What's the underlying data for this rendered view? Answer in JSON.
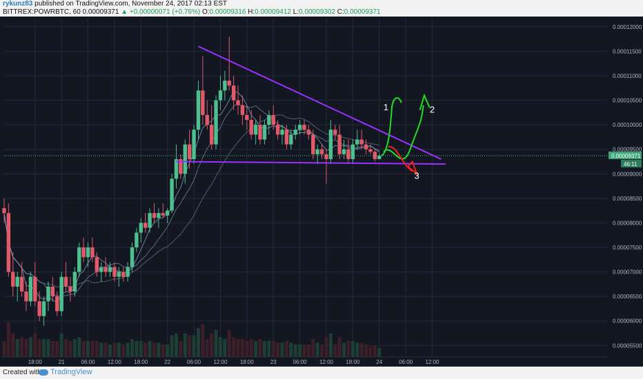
{
  "header": {
    "user": "rykunz83",
    "published": "published on TradingView.com, November 24, 2017 02:13 EST",
    "symbol": "BITTREX:POWRBTC, 60",
    "price": "0.00009371",
    "change": "▲ +0.00000071 (+0.76%)",
    "o_label": "O:",
    "o_val": "0.00009316",
    "h_label": "H:",
    "h_val": "0.00009412",
    "l_label": "L:",
    "l_val": "0.00009302",
    "c_label": "C:",
    "c_val": "0.00009371"
  },
  "footer": {
    "created_with": "Created with",
    "brand": "TradingView",
    "brand_icon": "cloud-icon"
  },
  "chart_data": {
    "type": "candlestick",
    "xlabel": "",
    "ylabel": "",
    "ylim": [
      5.35e-05,
      0.0001218
    ],
    "x_range_hours": [
      -7,
      129
    ],
    "x_ticks": [
      {
        "t": 0,
        "label": "18:00"
      },
      {
        "t": 6,
        "label": "21"
      },
      {
        "t": 12,
        "label": "06:00"
      },
      {
        "t": 18,
        "label": "12:00"
      },
      {
        "t": 24,
        "label": "18:00"
      },
      {
        "t": 30,
        "label": "22"
      },
      {
        "t": 36,
        "label": "06:00"
      },
      {
        "t": 42,
        "label": "12:00"
      },
      {
        "t": 48,
        "label": "18:00"
      },
      {
        "t": 54,
        "label": "23"
      },
      {
        "t": 60,
        "label": "06:00"
      },
      {
        "t": 66,
        "label": "12:00"
      },
      {
        "t": 72,
        "label": "18:00"
      },
      {
        "t": 78,
        "label": "24"
      },
      {
        "t": 84,
        "label": "06:00"
      },
      {
        "t": 90,
        "label": "12:00"
      }
    ],
    "y_ticks": [
      "0.00012000",
      "0.00011500",
      "0.00011000",
      "0.00010500",
      "0.00010000",
      "0.00009500",
      "0.00009000",
      "0.00008500",
      "0.00008000",
      "0.00007500",
      "0.00007000",
      "0.00006500",
      "0.00006000",
      "0.00005500"
    ],
    "last_price_label": "0.00009371",
    "countdown_label": "46:11",
    "colors": {
      "up": "#4fbf8f",
      "down": "#e05a6a",
      "background": "#131722",
      "grid": "#252a38",
      "trendline": "#9b30ff",
      "ma": "#8aa6c8",
      "annotation_green": "#22dd22",
      "annotation_red": "#ee2222",
      "volume_ma": "#c8844a"
    },
    "candles": [
      [
        -7,
        8.3e-05,
        8.5e-05,
        8e-05,
        8.2e-05
      ],
      [
        -6,
        8.2e-05,
        8.4e-05,
        6.9e-05,
        7e-05
      ],
      [
        -5,
        7e-05,
        7.4e-05,
        6.5e-05,
        6.7e-05
      ],
      [
        -4,
        6.7e-05,
        7e-05,
        6.4e-05,
        6.9e-05
      ],
      [
        -3,
        6.9e-05,
        7.2e-05,
        6.5e-05,
        6.6e-05
      ],
      [
        -2,
        6.6e-05,
        6.8e-05,
        6.2e-05,
        6.4e-05
      ],
      [
        -1,
        6.4e-05,
        7e-05,
        6.3e-05,
        6.9e-05
      ],
      [
        0,
        6.9e-05,
        7.2e-05,
        6.3e-05,
        6.4e-05
      ],
      [
        1,
        6.4e-05,
        6.6e-05,
        6e-05,
        6.1e-05
      ],
      [
        2,
        6.1e-05,
        6.5e-05,
        5.9e-05,
        6.4e-05
      ],
      [
        3,
        6.4e-05,
        6.8e-05,
        6.2e-05,
        6.7e-05
      ],
      [
        4,
        6.7e-05,
        6.9e-05,
        6.4e-05,
        6.5e-05
      ],
      [
        5,
        6.5e-05,
        6.6e-05,
        6.1e-05,
        6.2e-05
      ],
      [
        6,
        6.2e-05,
        7e-05,
        6.1e-05,
        6.9e-05
      ],
      [
        7,
        6.9e-05,
        7.2e-05,
        6.6e-05,
        6.7e-05
      ],
      [
        8,
        6.7e-05,
        6.9e-05,
        6.4e-05,
        6.6e-05
      ],
      [
        9,
        6.6e-05,
        7.1e-05,
        6.5e-05,
        7e-05
      ],
      [
        10,
        7e-05,
        7.6e-05,
        6.9e-05,
        7.5e-05
      ],
      [
        11,
        7.5e-05,
        7.7e-05,
        7.2e-05,
        7.3e-05
      ],
      [
        12,
        7.3e-05,
        7.6e-05,
        7.1e-05,
        7.5e-05
      ],
      [
        13,
        7.5e-05,
        7.7e-05,
        7.2e-05,
        7.3e-05
      ],
      [
        14,
        7.3e-05,
        7.4e-05,
        6.9e-05,
        7e-05
      ],
      [
        15,
        7e-05,
        7.2e-05,
        6.8e-05,
        7.1e-05
      ],
      [
        16,
        7.1e-05,
        7.3e-05,
        6.9e-05,
        7e-05
      ],
      [
        17,
        7e-05,
        7.2e-05,
        6.9e-05,
        7.1e-05
      ],
      [
        18,
        7.1e-05,
        7.2e-05,
        6.8e-05,
        6.9e-05
      ],
      [
        19,
        6.9e-05,
        7.1e-05,
        6.7e-05,
        7e-05
      ],
      [
        20,
        7e-05,
        7.1e-05,
        6.8e-05,
        6.9e-05
      ],
      [
        21,
        6.9e-05,
        7.2e-05,
        6.8e-05,
        7.1e-05
      ],
      [
        22,
        7.1e-05,
        7.6e-05,
        7e-05,
        7.5e-05
      ],
      [
        23,
        7.5e-05,
        7.9e-05,
        7.4e-05,
        7.8e-05
      ],
      [
        24,
        7.8e-05,
        8.1e-05,
        7.6e-05,
        8e-05
      ],
      [
        25,
        8e-05,
        8.2e-05,
        7.8e-05,
        7.9e-05
      ],
      [
        26,
        7.9e-05,
        8.3e-05,
        7.8e-05,
        8.2e-05
      ],
      [
        27,
        8.2e-05,
        8.4e-05,
        8e-05,
        8.1e-05
      ],
      [
        28,
        8.1e-05,
        8.3e-05,
        7.9e-05,
        8.2e-05
      ],
      [
        29,
        8.2e-05,
        8.4e-05,
        8.1e-05,
        8.15e-05
      ],
      [
        30,
        8.15e-05,
        8.3e-05,
        8e-05,
        8.25e-05
      ],
      [
        31,
        8.25e-05,
        9e-05,
        8.2e-05,
        8.9e-05
      ],
      [
        32,
        8.9e-05,
        9.6e-05,
        8.7e-05,
        9.3e-05
      ],
      [
        33,
        9.3e-05,
        9.4e-05,
        8.9e-05,
        9e-05
      ],
      [
        34,
        9e-05,
        9.7e-05,
        8.8e-05,
        9.6e-05
      ],
      [
        35,
        9.6e-05,
        9.9e-05,
        9.1e-05,
        9.3e-05
      ],
      [
        36,
        9.3e-05,
        0.0001,
        9.2e-05,
        9.9e-05
      ],
      [
        37,
        9.9e-05,
        0.000109,
        9.7e-05,
        0.000107
      ],
      [
        38,
        0.000107,
        0.000114,
        0.0001,
        0.000102
      ],
      [
        39,
        0.000102,
        0.000105,
        9.9e-05,
        0.0001
      ],
      [
        40,
        0.0001,
        0.000104,
        9.5e-05,
        9.6e-05
      ],
      [
        41,
        9.6e-05,
        0.000106,
        9.5e-05,
        0.000105
      ],
      [
        42,
        0.000105,
        0.00011,
        0.000103,
        0.000107
      ],
      [
        43,
        0.000107,
        0.000111,
        0.000105,
        0.000109
      ],
      [
        44,
        0.000109,
        0.000118,
        0.000107,
        0.000108
      ],
      [
        45,
        0.000108,
        0.00011,
        0.000103,
        0.000105
      ],
      [
        46,
        0.000105,
        0.000108,
        0.000102,
        0.000104
      ],
      [
        47,
        0.000104,
        0.000106,
        0.0001,
        0.000102
      ],
      [
        48,
        0.000102,
        0.000104,
        9.9e-05,
        0.000101
      ],
      [
        49,
        0.000101,
        0.000103,
        9.7e-05,
        9.8e-05
      ],
      [
        50,
        9.8e-05,
        0.000101,
        9.6e-05,
        0.0001
      ],
      [
        51,
        0.0001,
        0.000102,
        9.6e-05,
        9.7e-05
      ],
      [
        52,
        9.7e-05,
        0.000101,
        9.6e-05,
        0.0001
      ],
      [
        53,
        0.0001,
        0.000103,
        9.8e-05,
        0.000102
      ],
      [
        54,
        0.000102,
        0.000104,
        9.9e-05,
        0.0001
      ],
      [
        55,
        0.0001,
        0.000101,
        9.7e-05,
        9.8e-05
      ],
      [
        56,
        9.8e-05,
        0.0001,
        9.6e-05,
        9.9e-05
      ],
      [
        57,
        9.9e-05,
        0.0001,
        9.5e-05,
        9.6e-05
      ],
      [
        58,
        9.6e-05,
        9.9e-05,
        9.5e-05,
        9.8e-05
      ],
      [
        59,
        9.8e-05,
        0.0001,
        9.7e-05,
        9.9e-05
      ],
      [
        60,
        9.9e-05,
        0.000101,
        9.8e-05,
        0.0001
      ],
      [
        61,
        0.0001,
        0.000101,
        9.8e-05,
        9.9e-05
      ],
      [
        62,
        9.9e-05,
        0.0001,
        9.7e-05,
        9.8e-05
      ],
      [
        63,
        9.8e-05,
        9.9e-05,
        9.3e-05,
        9.4e-05
      ],
      [
        64,
        9.4e-05,
        9.6e-05,
        9.2e-05,
        9.5e-05
      ],
      [
        65,
        9.5e-05,
        9.6e-05,
        9.3e-05,
        9.4e-05
      ],
      [
        66,
        9.4e-05,
        9.5e-05,
        8.8e-05,
        9.3e-05
      ],
      [
        67,
        9.3e-05,
        0.000101,
        9.2e-05,
        9.9e-05
      ],
      [
        68,
        9.9e-05,
        0.0001,
        9.7e-05,
        9.8e-05
      ],
      [
        69,
        9.8e-05,
        0.0001,
        9.3e-05,
        9.4e-05
      ],
      [
        70,
        9.4e-05,
        9.7e-05,
        9.3e-05,
        9.5e-05
      ],
      [
        71,
        9.5e-05,
        9.7e-05,
        9.2e-05,
        9.3e-05
      ],
      [
        72,
        9.3e-05,
        9.7e-05,
        9.2e-05,
        9.6e-05
      ],
      [
        73,
        9.6e-05,
        9.9e-05,
        9.5e-05,
        9.7e-05
      ],
      [
        74,
        9.7e-05,
        9.9e-05,
        9.5e-05,
        9.6e-05
      ],
      [
        75,
        9.6e-05,
        9.7e-05,
        9.4e-05,
        9.5e-05
      ],
      [
        76,
        9.5e-05,
        9.6e-05,
        9.4e-05,
        9.45e-05
      ],
      [
        77,
        9.45e-05,
        9.5e-05,
        9.25e-05,
        9.3e-05
      ],
      [
        78,
        9.3e-05,
        9.42e-05,
        9.3e-05,
        9.37e-05
      ]
    ],
    "trendlines": [
      {
        "name": "descending-resistance",
        "t1": 37,
        "p1": 0.000116,
        "t2": 92,
        "p2": 9.3e-05
      },
      {
        "name": "horizontal-support",
        "t1": 32,
        "p1": 9.25e-05,
        "t2": 93,
        "p2": 9.2e-05
      }
    ],
    "annotations": [
      {
        "label": "1",
        "t": 79.5,
        "p": 0.000103
      },
      {
        "label": "2",
        "t": 90,
        "p": 0.0001025
      },
      {
        "label": "3",
        "t": 86.5,
        "p": 8.9e-05
      }
    ]
  }
}
